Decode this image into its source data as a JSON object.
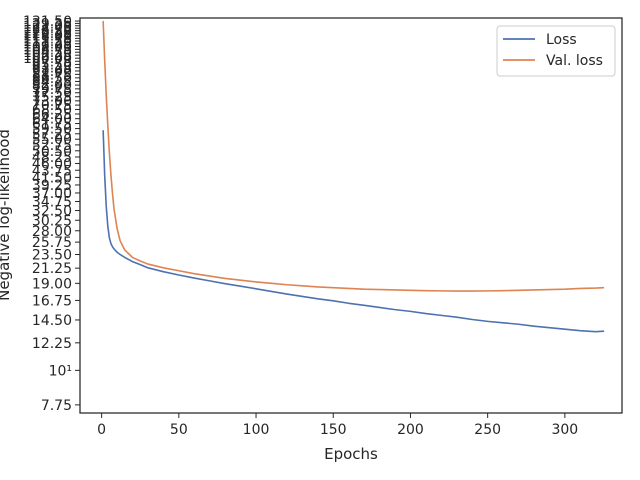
{
  "chart_data": {
    "type": "line",
    "xlabel": "Epochs",
    "ylabel": "Negative log-likelihood",
    "yscale": "log",
    "xlim": [
      -14,
      337
    ],
    "ylim": [
      7.3,
      134.5
    ],
    "xticks": [
      0,
      50,
      100,
      150,
      200,
      250,
      300
    ],
    "yticks": [
      {
        "value": 7.75,
        "label": "7.75"
      },
      {
        "value": 10,
        "label": "10¹"
      },
      {
        "value": 12.25,
        "label": "12.25"
      },
      {
        "value": 14.5,
        "label": "14.50"
      },
      {
        "value": 16.75,
        "label": "16.75"
      },
      {
        "value": 19.0,
        "label": "19.00"
      },
      {
        "value": 21.25,
        "label": "21.25"
      },
      {
        "value": 23.5,
        "label": "23.50"
      },
      {
        "value": 25.75,
        "label": "25.75"
      },
      {
        "value": 28.0,
        "label": "28.00"
      },
      {
        "value": 30.25,
        "label": "30.25"
      },
      {
        "value": 32.5,
        "label": "32.50"
      },
      {
        "value": 34.75,
        "label": "34.75"
      },
      {
        "value": 37.0,
        "label": "37.00"
      },
      {
        "value": 39.25,
        "label": "39.25"
      },
      {
        "value": 41.5,
        "label": "41.50"
      },
      {
        "value": 43.75,
        "label": "43.75"
      },
      {
        "value": 46.0,
        "label": "46.00"
      },
      {
        "value": 48.25,
        "label": "48.25"
      },
      {
        "value": 50.5,
        "label": "50.50"
      },
      {
        "value": 52.75,
        "label": "52.75"
      },
      {
        "value": 55.0,
        "label": "55.00"
      },
      {
        "value": 57.25,
        "label": "57.25"
      },
      {
        "value": 59.5,
        "label": "59.50"
      },
      {
        "value": 61.75,
        "label": "61.75"
      },
      {
        "value": 64.0,
        "label": "64.00"
      },
      {
        "value": 66.25,
        "label": "66.25"
      },
      {
        "value": 68.5,
        "label": "68.50"
      },
      {
        "value": 70.75,
        "label": "70.75"
      },
      {
        "value": 73.0,
        "label": "73.00"
      },
      {
        "value": 75.25,
        "label": "75.25"
      },
      {
        "value": 77.5,
        "label": "77.50"
      },
      {
        "value": 79.75,
        "label": "79.75"
      },
      {
        "value": 82.0,
        "label": "82.00"
      },
      {
        "value": 84.25,
        "label": "84.25"
      },
      {
        "value": 86.5,
        "label": "86.50"
      },
      {
        "value": 88.75,
        "label": "88.75"
      },
      {
        "value": 91.0,
        "label": "91.00"
      },
      {
        "value": 93.25,
        "label": "93.25"
      },
      {
        "value": 95.5,
        "label": "95.50"
      },
      {
        "value": 97.75,
        "label": "97.75"
      },
      {
        "value": 100.0,
        "label": "100.00"
      },
      {
        "value": 102.25,
        "label": "102.25"
      },
      {
        "value": 104.5,
        "label": "104.50"
      },
      {
        "value": 106.75,
        "label": "106.75"
      },
      {
        "value": 109.0,
        "label": "109.00"
      },
      {
        "value": 111.25,
        "label": "111.25"
      },
      {
        "value": 113.5,
        "label": "113.50"
      },
      {
        "value": 115.75,
        "label": "115.75"
      },
      {
        "value": 118.0,
        "label": "118.00"
      },
      {
        "value": 120.25,
        "label": "120.25"
      },
      {
        "value": 122.5,
        "label": "122.50"
      },
      {
        "value": 124.75,
        "label": "124.75"
      },
      {
        "value": 127.0,
        "label": "127.00"
      },
      {
        "value": 129.25,
        "label": "129.25"
      },
      {
        "value": 131.5,
        "label": "131.50"
      }
    ],
    "legend": {
      "position": "upper-right"
    },
    "grid": false,
    "series": [
      {
        "name": "Loss",
        "color": "#4c72b0",
        "x": [
          1,
          2,
          3,
          4,
          5,
          6,
          7,
          8,
          10,
          12,
          15,
          20,
          25,
          30,
          40,
          50,
          60,
          70,
          80,
          90,
          100,
          110,
          120,
          130,
          140,
          150,
          160,
          170,
          180,
          190,
          200,
          210,
          220,
          230,
          240,
          250,
          260,
          270,
          280,
          290,
          300,
          310,
          320,
          325
        ],
        "y": [
          58.5,
          42.0,
          33.5,
          29.0,
          26.6,
          25.5,
          24.9,
          24.5,
          23.9,
          23.5,
          23.0,
          22.3,
          21.8,
          21.3,
          20.7,
          20.2,
          19.75,
          19.35,
          18.95,
          18.6,
          18.25,
          17.9,
          17.55,
          17.25,
          16.95,
          16.7,
          16.4,
          16.15,
          15.9,
          15.65,
          15.45,
          15.2,
          15.0,
          14.8,
          14.55,
          14.35,
          14.2,
          14.05,
          13.85,
          13.7,
          13.55,
          13.4,
          13.3,
          13.35
        ]
      },
      {
        "name": "Val. loss",
        "color": "#dd8452",
        "x": [
          1,
          2,
          3,
          4,
          5,
          6,
          7,
          8,
          10,
          12,
          15,
          20,
          25,
          30,
          40,
          50,
          60,
          70,
          80,
          90,
          100,
          110,
          120,
          130,
          140,
          150,
          160,
          170,
          180,
          190,
          200,
          210,
          220,
          230,
          240,
          250,
          260,
          270,
          280,
          290,
          300,
          310,
          320,
          325
        ],
        "y": [
          131.0,
          98.0,
          76.0,
          61.0,
          50.0,
          42.5,
          37.0,
          33.0,
          28.5,
          26.0,
          24.3,
          23.0,
          22.4,
          21.9,
          21.3,
          20.85,
          20.4,
          20.05,
          19.7,
          19.45,
          19.2,
          19.0,
          18.8,
          18.65,
          18.5,
          18.4,
          18.3,
          18.2,
          18.15,
          18.1,
          18.05,
          18.0,
          17.97,
          17.95,
          17.95,
          17.97,
          18.0,
          18.05,
          18.1,
          18.15,
          18.2,
          18.3,
          18.35,
          18.4
        ]
      }
    ]
  }
}
